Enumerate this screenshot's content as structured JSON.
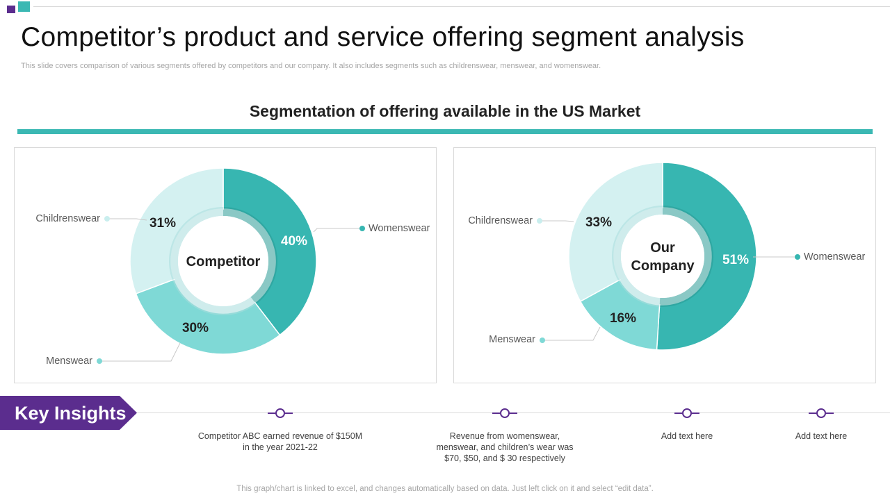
{
  "header": {
    "title": "Competitor’s product and service offering segment analysis",
    "subtitle": "This slide covers comparison of various segments offered by competitors and our company. It also includes segments such as childrenswear, menswear, and womenswear."
  },
  "section": {
    "heading": "Segmentation of offering available in the US Market"
  },
  "colors": {
    "womenswear": "#37b6b1",
    "menswear": "#7fd9d6",
    "childrenswear": "#d4f1f1",
    "inner_ring_dark": "#2a9a96",
    "inner_ring_light": "#a8dcdc",
    "accent_teal": "#3bb8b3",
    "accent_purple": "#5b2d8e"
  },
  "chart_data": [
    {
      "type": "pie",
      "variant": "donut",
      "center_label": [
        "Competitor"
      ],
      "categories": [
        "Womenswear",
        "Menswear",
        "Childrenswear"
      ],
      "values": [
        40,
        30,
        31
      ],
      "value_labels": [
        "40%",
        "30%",
        "31%"
      ]
    },
    {
      "type": "pie",
      "variant": "donut",
      "center_label": [
        "Our",
        "Company"
      ],
      "categories": [
        "Womenswear",
        "Menswear",
        "Childrenswear"
      ],
      "values": [
        51,
        16,
        33
      ],
      "value_labels": [
        "51%",
        "16%",
        "33%"
      ]
    }
  ],
  "key_insights": {
    "label": "Key Insights",
    "items": [
      "Competitor ABC earned revenue  of $150M\nin the year 2021-22",
      "Revenue  from womenswear,\nmenswear,  and children’s wear was\n$70,  $50,  and $ 30  respectively",
      "Add text here",
      "Add text here"
    ]
  },
  "footer": {
    "note": "This graph/chart is linked to excel,  and changes automatically based on data. Just left click on it and select “edit data”."
  }
}
